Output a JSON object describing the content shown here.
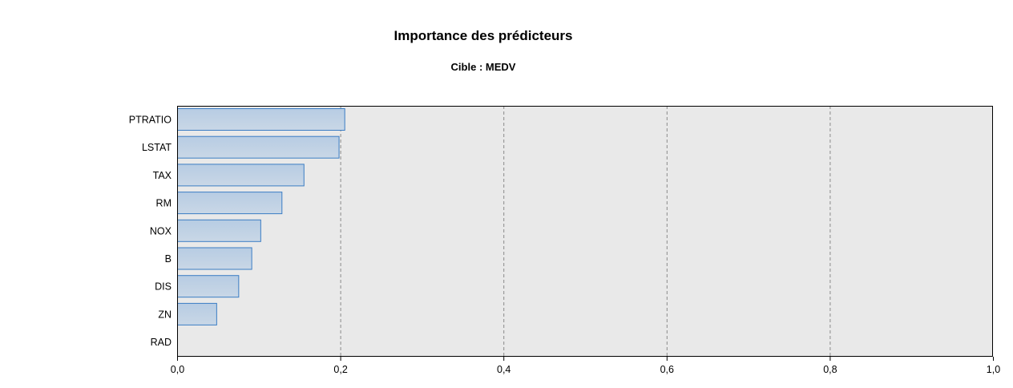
{
  "chart_data": {
    "type": "bar",
    "orientation": "horizontal",
    "title": "Importance des prédicteurs",
    "subtitle": "Cible : MEDV",
    "categories": [
      "PTRATIO",
      "LSTAT",
      "TAX",
      "RM",
      "NOX",
      "B",
      "DIS",
      "ZN",
      "RAD"
    ],
    "values": [
      0.205,
      0.198,
      0.155,
      0.128,
      0.102,
      0.091,
      0.075,
      0.048,
      0.0
    ],
    "xlim": [
      0,
      1.0
    ],
    "xticks": [
      0,
      0.2,
      0.4,
      0.6,
      0.8,
      1.0
    ],
    "xtick_labels": [
      "0,0",
      "0,2",
      "0,4",
      "0,6",
      "0,8",
      "1,0"
    ],
    "xlabel": "",
    "ylabel": "",
    "grid": "vertical dashed",
    "colors": {
      "bar_fill_top": "#b7cce3",
      "bar_fill_bottom": "#c9d7e6",
      "bar_stroke": "#3b7dc4",
      "plot_bg": "#e9e9e9",
      "grid": "#8a8a8a",
      "axis": "#000000"
    }
  }
}
